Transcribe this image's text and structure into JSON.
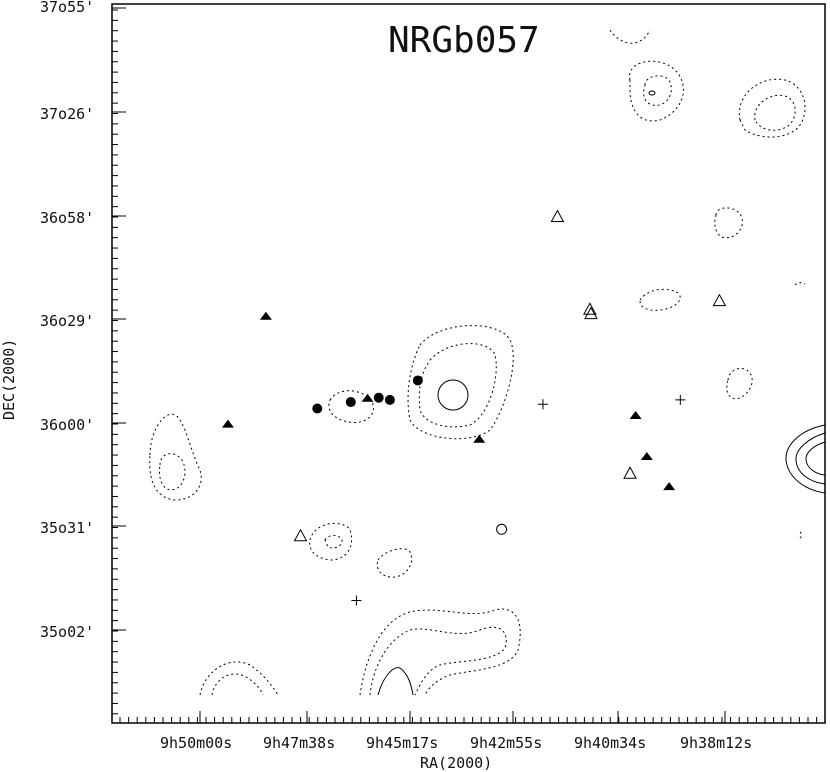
{
  "chart_data": {
    "type": "scatter",
    "title": "NRGb057",
    "xlabel": "RA(2000)",
    "ylabel": "DEC(2000)",
    "x_ticks": [
      "9h50m00s",
      "9h47m38s",
      "9h45m17s",
      "9h42m55s",
      "9h40m34s",
      "9h38m12s"
    ],
    "y_ticks": [
      "37o55'",
      "37o26'",
      "36o58'",
      "36o29'",
      "36o00'",
      "35o31'",
      "35o02'"
    ],
    "xlim": [
      "9h51m40s",
      "9h36m10s"
    ],
    "ylim": [
      "34o34'",
      "37o55'"
    ],
    "grid": false,
    "series": [
      {
        "marker": "filled-circle",
        "points": [
          [
            236.7,
            36.06
          ],
          [
            236.4,
            36.09
          ],
          [
            236.15,
            36.11
          ],
          [
            236.05,
            36.1
          ],
          [
            235.8,
            36.19
          ]
        ]
      },
      {
        "marker": "filled-triangle",
        "points": [
          [
            237.16,
            36.49
          ],
          [
            237.5,
            35.99
          ],
          [
            236.25,
            36.11
          ],
          [
            235.25,
            35.92
          ],
          [
            233.85,
            36.03
          ],
          [
            233.75,
            35.84
          ],
          [
            233.55,
            35.7
          ]
        ]
      },
      {
        "marker": "open-triangle",
        "points": [
          [
            236.85,
            35.47
          ],
          [
            234.55,
            36.95
          ],
          [
            234.26,
            36.52
          ],
          [
            234.25,
            36.5
          ],
          [
            233.1,
            36.56
          ],
          [
            233.9,
            35.76
          ]
        ]
      },
      {
        "marker": "plus",
        "points": [
          [
            234.68,
            36.08
          ],
          [
            233.45,
            36.1
          ],
          [
            236.35,
            35.17
          ]
        ]
      },
      {
        "marker": "open-circle",
        "points": [
          [
            235.05,
            35.5
          ]
        ]
      }
    ]
  }
}
